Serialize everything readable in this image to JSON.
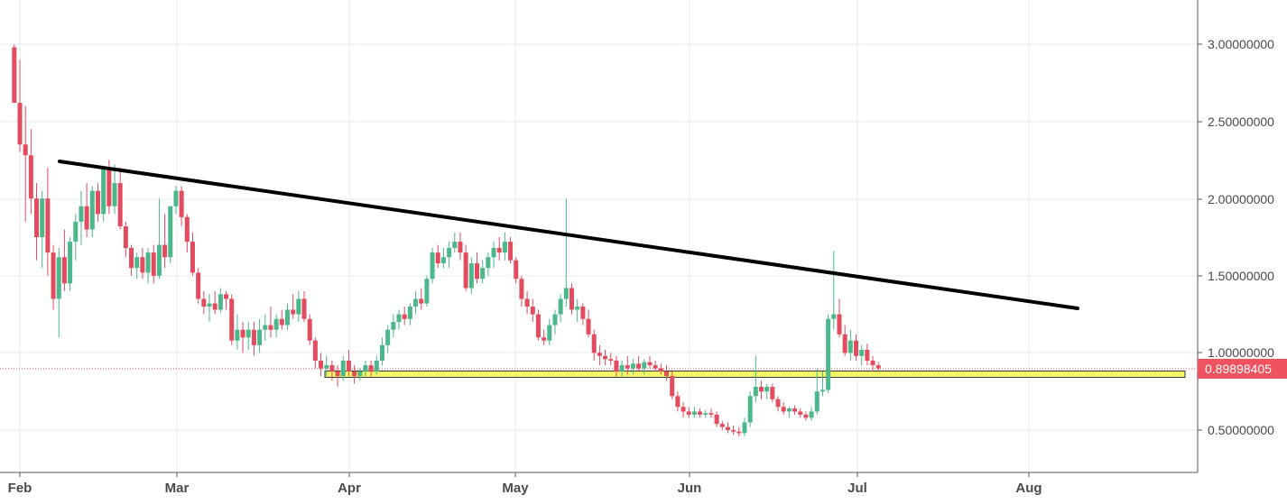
{
  "chart_data": {
    "type": "candlestick",
    "title": "",
    "xlabel": "",
    "ylabel": "",
    "x_ticks": [
      "Feb",
      "Mar",
      "Apr",
      "May",
      "Jun",
      "Jul",
      "Aug"
    ],
    "y_ticks": [
      "3.00000000",
      "2.50000000",
      "2.00000000",
      "1.50000000",
      "1.00000000",
      "0.50000000"
    ],
    "ylim": [
      0.3,
      3.3
    ],
    "grid": true,
    "price_axis_position": "right",
    "last_price_label": "0.89898405",
    "colors": {
      "up": "#4bb78a",
      "down": "#e34b5e",
      "trendline": "#000000",
      "support_zone": "#f5f56a",
      "support_zone_border": "#333333",
      "last_price": "#ef5360",
      "grid": "#e6edf3",
      "axis_text": "#4a4a4a"
    },
    "series": [
      {
        "name": "",
        "columns": [
          "date",
          "open",
          "high",
          "low",
          "close"
        ],
        "values": [
          [
            "Jan 31",
            2.98,
            3.0,
            2.62,
            2.62
          ],
          [
            "Feb 01",
            2.62,
            2.9,
            2.3,
            2.35
          ],
          [
            "Feb 02",
            2.35,
            2.6,
            1.85,
            2.28
          ],
          [
            "Feb 03",
            2.28,
            2.45,
            1.9,
            2.0
          ],
          [
            "Feb 04",
            2.0,
            2.1,
            1.6,
            1.75
          ],
          [
            "Feb 05",
            1.75,
            2.05,
            1.55,
            2.0
          ],
          [
            "Feb 06",
            2.0,
            2.2,
            1.5,
            1.65
          ],
          [
            "Feb 07",
            1.65,
            1.7,
            1.28,
            1.35
          ],
          [
            "Feb 08",
            1.35,
            1.68,
            1.1,
            1.62
          ],
          [
            "Feb 09",
            1.62,
            1.8,
            1.4,
            1.45
          ],
          [
            "Feb 10",
            1.45,
            1.75,
            1.4,
            1.72
          ],
          [
            "Feb 11",
            1.72,
            1.9,
            1.6,
            1.85
          ],
          [
            "Feb 12",
            1.85,
            2.05,
            1.7,
            1.95
          ],
          [
            "Feb 13",
            1.95,
            2.1,
            1.75,
            1.8
          ],
          [
            "Feb 14",
            1.8,
            2.08,
            1.75,
            2.05
          ],
          [
            "Feb 15",
            2.05,
            2.1,
            1.85,
            1.9
          ],
          [
            "Feb 16",
            1.9,
            2.2,
            1.85,
            2.2
          ],
          [
            "Feb 17",
            2.2,
            2.25,
            1.9,
            1.95
          ],
          [
            "Feb 18",
            1.95,
            2.22,
            1.9,
            2.1
          ],
          [
            "Feb 19",
            2.1,
            2.2,
            1.8,
            1.82
          ],
          [
            "Feb 20",
            1.82,
            1.85,
            1.62,
            1.68
          ],
          [
            "Feb 21",
            1.68,
            1.7,
            1.5,
            1.55
          ],
          [
            "Feb 22",
            1.55,
            1.65,
            1.48,
            1.62
          ],
          [
            "Feb 23",
            1.62,
            1.68,
            1.48,
            1.52
          ],
          [
            "Feb 24",
            1.52,
            1.68,
            1.45,
            1.65
          ],
          [
            "Feb 25",
            1.65,
            1.7,
            1.45,
            1.5
          ],
          [
            "Feb 26",
            1.5,
            2.0,
            1.48,
            1.7
          ],
          [
            "Feb 27",
            1.7,
            1.9,
            1.55,
            1.62
          ],
          [
            "Feb 28",
            1.62,
            1.95,
            1.58,
            1.95
          ],
          [
            "Mar 01",
            1.95,
            2.08,
            1.9,
            2.05
          ],
          [
            "Mar 02",
            2.05,
            2.08,
            1.82,
            1.88
          ],
          [
            "Mar 03",
            1.88,
            1.9,
            1.65,
            1.72
          ],
          [
            "Mar 04",
            1.72,
            1.78,
            1.5,
            1.52
          ],
          [
            "Mar 05",
            1.52,
            1.55,
            1.32,
            1.35
          ],
          [
            "Mar 06",
            1.35,
            1.4,
            1.25,
            1.3
          ],
          [
            "Mar 07",
            1.3,
            1.38,
            1.2,
            1.32
          ],
          [
            "Mar 08",
            1.32,
            1.4,
            1.25,
            1.28
          ],
          [
            "Mar 09",
            1.28,
            1.42,
            1.26,
            1.38
          ],
          [
            "Mar 10",
            1.38,
            1.4,
            1.28,
            1.35
          ],
          [
            "Mar 11",
            1.35,
            1.38,
            1.05,
            1.08
          ],
          [
            "Mar 12",
            1.08,
            1.25,
            1.02,
            1.15
          ],
          [
            "Mar 13",
            1.15,
            1.2,
            1.0,
            1.1
          ],
          [
            "Mar 14",
            1.1,
            1.2,
            1.02,
            1.15
          ],
          [
            "Mar 15",
            1.15,
            1.2,
            0.98,
            1.05
          ],
          [
            "Mar 16",
            1.05,
            1.22,
            1.0,
            1.15
          ],
          [
            "Mar 17",
            1.15,
            1.25,
            1.08,
            1.18
          ],
          [
            "Mar 18",
            1.18,
            1.3,
            1.1,
            1.15
          ],
          [
            "Mar 19",
            1.15,
            1.25,
            1.1,
            1.22
          ],
          [
            "Mar 20",
            1.22,
            1.28,
            1.15,
            1.18
          ],
          [
            "Mar 21",
            1.18,
            1.32,
            1.15,
            1.28
          ],
          [
            "Mar 22",
            1.28,
            1.38,
            1.22,
            1.25
          ],
          [
            "Mar 23",
            1.25,
            1.4,
            1.2,
            1.35
          ],
          [
            "Mar 24",
            1.35,
            1.4,
            1.2,
            1.22
          ],
          [
            "Mar 25",
            1.22,
            1.25,
            1.05,
            1.08
          ],
          [
            "Mar 26",
            1.08,
            1.1,
            0.9,
            0.95
          ],
          [
            "Mar 27",
            0.95,
            1.0,
            0.85,
            0.9
          ],
          [
            "Mar 28",
            0.9,
            0.98,
            0.85,
            0.92
          ],
          [
            "Mar 29",
            0.92,
            0.95,
            0.82,
            0.88
          ],
          [
            "Mar 30",
            0.88,
            0.92,
            0.78,
            0.85
          ],
          [
            "Mar 31",
            0.85,
            0.98,
            0.82,
            0.95
          ],
          [
            "Apr 01",
            0.95,
            1.02,
            0.85,
            0.88
          ],
          [
            "Apr 02",
            0.88,
            0.92,
            0.8,
            0.85
          ],
          [
            "Apr 03",
            0.85,
            0.9,
            0.82,
            0.88
          ],
          [
            "Apr 04",
            0.88,
            0.95,
            0.85,
            0.92
          ],
          [
            "Apr 05",
            0.92,
            0.95,
            0.85,
            0.88
          ],
          [
            "Apr 06",
            0.88,
            0.98,
            0.86,
            0.95
          ],
          [
            "Apr 07",
            0.95,
            1.1,
            0.92,
            1.05
          ],
          [
            "Apr 08",
            1.05,
            1.18,
            1.0,
            1.15
          ],
          [
            "Apr 09",
            1.15,
            1.25,
            1.1,
            1.2
          ],
          [
            "Apr 10",
            1.2,
            1.28,
            1.15,
            1.25
          ],
          [
            "Apr 11",
            1.25,
            1.3,
            1.18,
            1.22
          ],
          [
            "Apr 12",
            1.22,
            1.32,
            1.18,
            1.3
          ],
          [
            "Apr 13",
            1.3,
            1.4,
            1.25,
            1.35
          ],
          [
            "Apr 14",
            1.35,
            1.42,
            1.28,
            1.32
          ],
          [
            "Apr 15",
            1.32,
            1.5,
            1.3,
            1.48
          ],
          [
            "Apr 16",
            1.48,
            1.68,
            1.45,
            1.65
          ],
          [
            "Apr 17",
            1.65,
            1.7,
            1.55,
            1.58
          ],
          [
            "Apr 18",
            1.58,
            1.68,
            1.55,
            1.62
          ],
          [
            "Apr 19",
            1.62,
            1.72,
            1.55,
            1.68
          ],
          [
            "Apr 20",
            1.68,
            1.78,
            1.65,
            1.72
          ],
          [
            "Apr 21",
            1.72,
            1.78,
            1.6,
            1.65
          ],
          [
            "Apr 22",
            1.65,
            1.7,
            1.4,
            1.42
          ],
          [
            "Apr 23",
            1.42,
            1.62,
            1.38,
            1.58
          ],
          [
            "Apr 24",
            1.58,
            1.65,
            1.45,
            1.48
          ],
          [
            "Apr 25",
            1.48,
            1.6,
            1.45,
            1.55
          ],
          [
            "Apr 26",
            1.55,
            1.65,
            1.5,
            1.62
          ],
          [
            "Apr 27",
            1.62,
            1.72,
            1.55,
            1.68
          ],
          [
            "Apr 28",
            1.68,
            1.75,
            1.6,
            1.65
          ],
          [
            "Apr 29",
            1.65,
            1.78,
            1.6,
            1.72
          ],
          [
            "Apr 30",
            1.72,
            1.75,
            1.58,
            1.6
          ],
          [
            "May 01",
            1.6,
            1.62,
            1.45,
            1.48
          ],
          [
            "May 02",
            1.48,
            1.5,
            1.3,
            1.35
          ],
          [
            "May 03",
            1.35,
            1.4,
            1.25,
            1.3
          ],
          [
            "May 04",
            1.3,
            1.35,
            1.2,
            1.25
          ],
          [
            "May 05",
            1.25,
            1.28,
            1.08,
            1.1
          ],
          [
            "May 06",
            1.1,
            1.15,
            1.05,
            1.08
          ],
          [
            "May 07",
            1.08,
            1.22,
            1.05,
            1.18
          ],
          [
            "May 08",
            1.18,
            1.28,
            1.12,
            1.25
          ],
          [
            "May 09",
            1.25,
            1.38,
            1.2,
            1.35
          ],
          [
            "May 10",
            1.35,
            2.0,
            1.3,
            1.42
          ],
          [
            "May 11",
            1.42,
            1.45,
            1.25,
            1.28
          ],
          [
            "May 12",
            1.28,
            1.35,
            1.2,
            1.3
          ],
          [
            "May 13",
            1.3,
            1.32,
            1.18,
            1.22
          ],
          [
            "May 14",
            1.22,
            1.28,
            1.1,
            1.12
          ],
          [
            "May 15",
            1.12,
            1.15,
            0.95,
            1.0
          ],
          [
            "May 16",
            1.0,
            1.05,
            0.92,
            0.98
          ],
          [
            "May 17",
            0.98,
            1.02,
            0.92,
            0.96
          ],
          [
            "May 18",
            0.96,
            1.0,
            0.92,
            0.95
          ],
          [
            "May 19",
            0.95,
            0.98,
            0.85,
            0.88
          ],
          [
            "May 20",
            0.88,
            0.95,
            0.85,
            0.92
          ],
          [
            "May 21",
            0.92,
            0.98,
            0.86,
            0.9
          ],
          [
            "May 22",
            0.9,
            0.96,
            0.86,
            0.93
          ],
          [
            "May 23",
            0.93,
            0.98,
            0.88,
            0.9
          ],
          [
            "May 24",
            0.9,
            0.96,
            0.86,
            0.94
          ],
          [
            "May 25",
            0.94,
            0.98,
            0.9,
            0.92
          ],
          [
            "May 26",
            0.92,
            0.95,
            0.88,
            0.9
          ],
          [
            "May 27",
            0.9,
            0.93,
            0.86,
            0.88
          ],
          [
            "May 28",
            0.88,
            0.92,
            0.82,
            0.85
          ],
          [
            "May 29",
            0.85,
            0.88,
            0.7,
            0.72
          ],
          [
            "May 30",
            0.72,
            0.75,
            0.62,
            0.65
          ],
          [
            "May 31",
            0.65,
            0.68,
            0.58,
            0.62
          ],
          [
            "Jun 01",
            0.62,
            0.65,
            0.58,
            0.6
          ],
          [
            "Jun 02",
            0.6,
            0.65,
            0.58,
            0.62
          ],
          [
            "Jun 03",
            0.62,
            0.64,
            0.58,
            0.6
          ],
          [
            "Jun 04",
            0.6,
            0.63,
            0.58,
            0.61
          ],
          [
            "Jun 05",
            0.61,
            0.64,
            0.58,
            0.6
          ],
          [
            "Jun 06",
            0.6,
            0.62,
            0.52,
            0.54
          ],
          [
            "Jun 07",
            0.54,
            0.56,
            0.5,
            0.52
          ],
          [
            "Jun 08",
            0.52,
            0.55,
            0.48,
            0.5
          ],
          [
            "Jun 09",
            0.5,
            0.53,
            0.47,
            0.49
          ],
          [
            "Jun 10",
            0.49,
            0.52,
            0.46,
            0.48
          ],
          [
            "Jun 11",
            0.48,
            0.58,
            0.46,
            0.55
          ],
          [
            "Jun 12",
            0.55,
            0.75,
            0.52,
            0.72
          ],
          [
            "Jun 13",
            0.72,
            0.98,
            0.68,
            0.78
          ],
          [
            "Jun 14",
            0.78,
            0.82,
            0.7,
            0.75
          ],
          [
            "Jun 15",
            0.75,
            0.8,
            0.7,
            0.78
          ],
          [
            "Jun 16",
            0.78,
            0.8,
            0.68,
            0.7
          ],
          [
            "Jun 17",
            0.7,
            0.72,
            0.62,
            0.65
          ],
          [
            "Jun 18",
            0.65,
            0.68,
            0.6,
            0.62
          ],
          [
            "Jun 19",
            0.62,
            0.65,
            0.58,
            0.64
          ],
          [
            "Jun 20",
            0.64,
            0.66,
            0.6,
            0.62
          ],
          [
            "Jun 21",
            0.62,
            0.64,
            0.58,
            0.6
          ],
          [
            "Jun 22",
            0.6,
            0.62,
            0.56,
            0.58
          ],
          [
            "Jun 23",
            0.58,
            0.65,
            0.56,
            0.62
          ],
          [
            "Jun 24",
            0.62,
            0.9,
            0.6,
            0.75
          ],
          [
            "Jun 25",
            0.75,
            0.88,
            0.72,
            0.76
          ],
          [
            "Jun 26",
            0.76,
            1.25,
            0.74,
            1.22
          ],
          [
            "Jun 27",
            1.22,
            1.66,
            1.15,
            1.25
          ],
          [
            "Jun 28",
            1.25,
            1.35,
            1.1,
            1.12
          ],
          [
            "Jun 29",
            1.12,
            1.18,
            0.98,
            1.0
          ],
          [
            "Jun 30",
            1.0,
            1.15,
            0.95,
            1.08
          ],
          [
            "Jul 01",
            1.08,
            1.12,
            0.95,
            0.98
          ],
          [
            "Jul 02",
            0.98,
            1.05,
            0.92,
            1.02
          ],
          [
            "Jul 03",
            1.02,
            1.06,
            0.92,
            0.95
          ],
          [
            "Jul 04",
            0.95,
            0.98,
            0.88,
            0.92
          ],
          [
            "Jul 05",
            0.92,
            0.94,
            0.88,
            0.9
          ]
        ]
      }
    ],
    "trendline": {
      "from": [
        "Feb 05",
        2.25
      ],
      "to": [
        "Aug 05",
        1.28
      ]
    },
    "support_zone": {
      "from": "Mar 24",
      "to": "Aug 31",
      "low": 0.85,
      "high": 0.9
    }
  }
}
